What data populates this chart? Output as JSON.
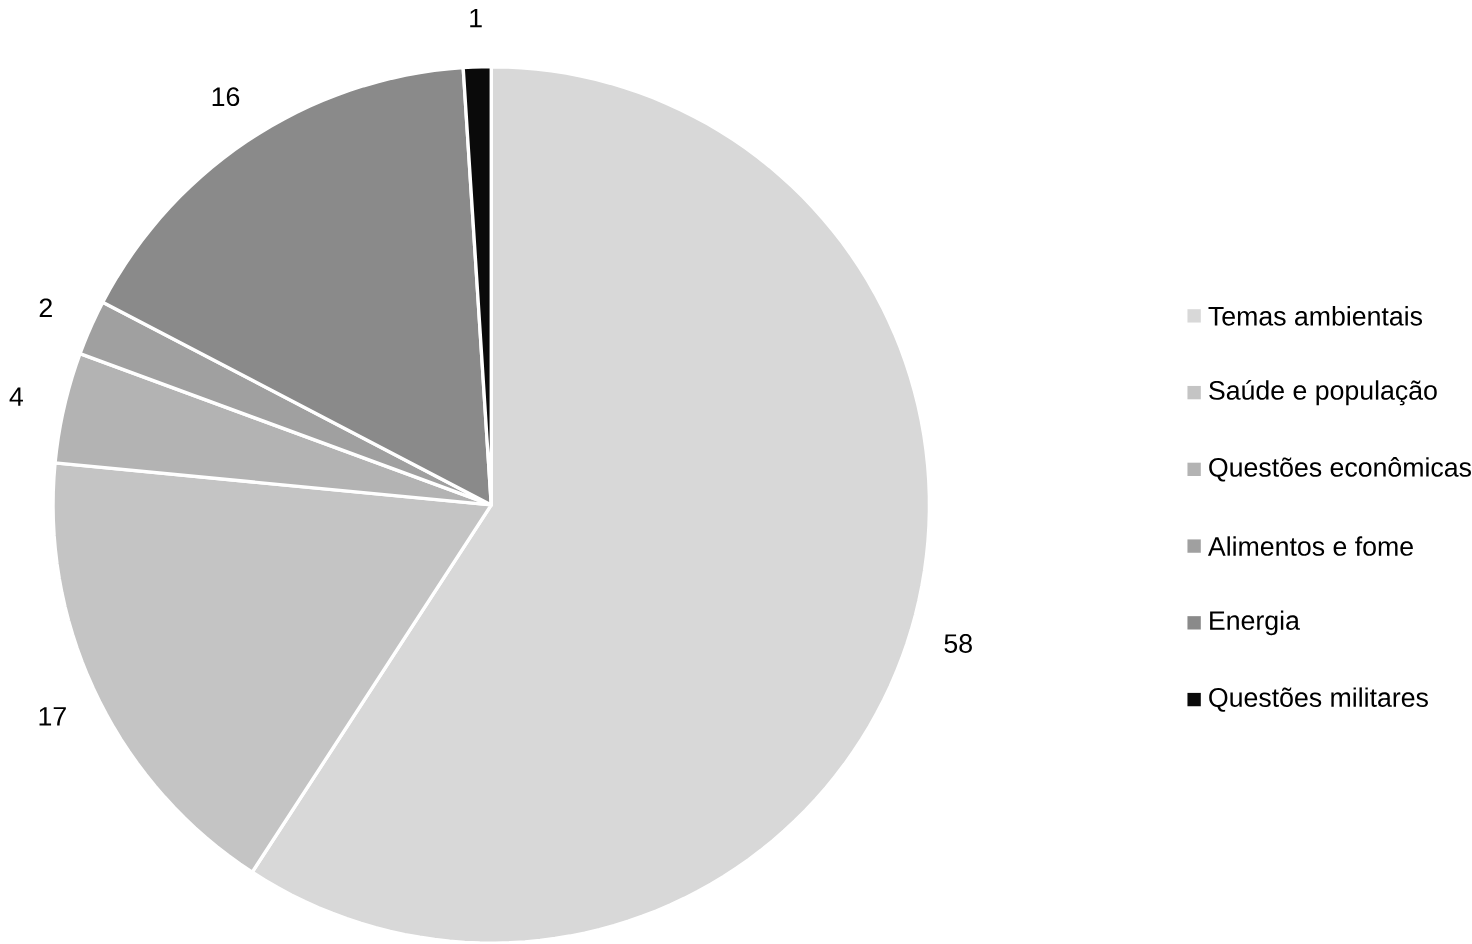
{
  "chart_data": {
    "type": "pie",
    "categories": [
      "Temas ambientais",
      "Saúde e população",
      "Questões econômicas",
      "Alimentos e fome",
      "Energia",
      "Questões militares"
    ],
    "values": [
      58,
      17,
      4,
      2,
      16,
      1
    ],
    "colors": [
      "#d8d8d8",
      "#c4c4c4",
      "#b3b3b3",
      "#a0a0a0",
      "#8a8a8a",
      "#0a0a0a"
    ],
    "data_labels": true,
    "legend": "right"
  }
}
